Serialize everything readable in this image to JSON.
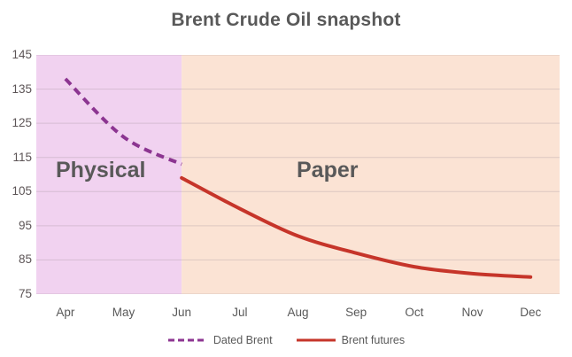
{
  "title": "Brent Crude Oil snapshot",
  "regions": {
    "physical_label": "Physical",
    "paper_label": "Paper",
    "split_at": "Jun",
    "physical_fill": "#F1D2F0",
    "paper_fill": "#FBE3D4"
  },
  "colors": {
    "title_text": "#595959",
    "axis_text": "#5c5456",
    "grid_line": "#9e8f98",
    "dated_brent": "#8C3591",
    "brent_futures": "#C6352A"
  },
  "legend": [
    {
      "label": "Dated Brent",
      "style": "dashed",
      "color": "#8C3591"
    },
    {
      "label": "Brent futures",
      "style": "solid",
      "color": "#C6352A"
    }
  ],
  "chart_data": {
    "type": "line",
    "title": "Brent Crude Oil snapshot",
    "x_categories": [
      "Apr",
      "May",
      "Jun",
      "Jul",
      "Aug",
      "Sep",
      "Oct",
      "Nov",
      "Dec"
    ],
    "ylim": [
      75,
      145
    ],
    "yticks": [
      145,
      135,
      125,
      115,
      105,
      95,
      85,
      75
    ],
    "grid": "horizontal",
    "legend_position": "bottom",
    "annotations": [
      {
        "text": "Physical",
        "region": "Apr-Jun"
      },
      {
        "text": "Paper",
        "region": "Jun-Dec"
      }
    ],
    "series": [
      {
        "name": "Dated Brent",
        "line_style": "dashed",
        "color": "#8C3591",
        "x": [
          "Apr",
          "May",
          "Jun"
        ],
        "values": [
          138,
          121,
          113
        ]
      },
      {
        "name": "Brent futures",
        "line_style": "solid",
        "color": "#C6352A",
        "x": [
          "Jun",
          "Jul",
          "Aug",
          "Sep",
          "Oct",
          "Nov",
          "Dec"
        ],
        "values": [
          109,
          100,
          92,
          87,
          83,
          81,
          80
        ]
      }
    ]
  }
}
